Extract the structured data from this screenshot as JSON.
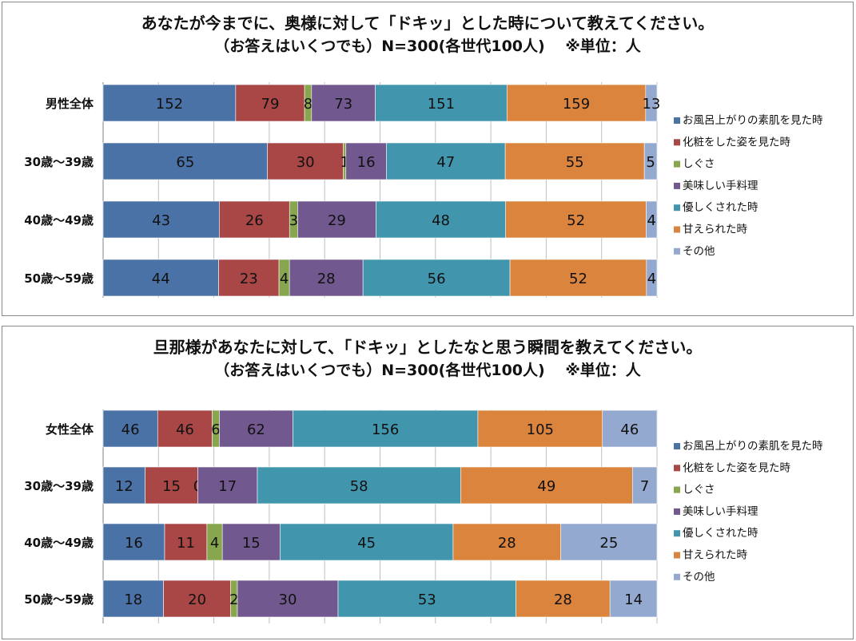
{
  "colors": [
    "#4a72a6",
    "#a84746",
    "#87a64e",
    "#71588f",
    "#4196ae",
    "#db843e",
    "#93a9cf"
  ],
  "legend": [
    "お風呂上がりの素肌を見た時",
    "化粧をした姿を見た時",
    "しぐさ",
    "美味しい手料理",
    "優しくされた時",
    "甘えられた時",
    "その他"
  ],
  "chart_data": [
    {
      "type": "bar",
      "orientation": "horizontal",
      "stacked": "percent",
      "title": "あなたが今までに、奥様に対して「ドキッ」とした時について教えてください。",
      "subtitle": "（お答えはいくつでも）N=300(各世代100人)　 ※単位：人",
      "categories": [
        "男性全体",
        "30歳～39歳",
        "40歳～49歳",
        "50歳～59歳"
      ],
      "series": [
        {
          "name": "お風呂上がりの素肌を見た時",
          "values": [
            152,
            65,
            43,
            44
          ]
        },
        {
          "name": "化粧をした姿を見た時",
          "values": [
            79,
            30,
            26,
            23
          ]
        },
        {
          "name": "しぐさ",
          "values": [
            8,
            1,
            3,
            4
          ]
        },
        {
          "name": "美味しい手料理",
          "values": [
            73,
            16,
            29,
            28
          ]
        },
        {
          "name": "優しくされた時",
          "values": [
            151,
            47,
            48,
            56
          ]
        },
        {
          "name": "甘えられた時",
          "values": [
            159,
            55,
            52,
            52
          ]
        },
        {
          "name": "その他",
          "values": [
            13,
            5,
            4,
            4
          ]
        }
      ],
      "legend_position": "right",
      "grid": true
    },
    {
      "type": "bar",
      "orientation": "horizontal",
      "stacked": "percent",
      "title": "旦那様があなたに対して、「ドキッ」としたなと思う瞬間を教えてください。",
      "subtitle": "（お答えはいくつでも）N=300(各世代100人)　 ※単位：人",
      "categories": [
        "女性全体",
        "30歳～39歳",
        "40歳～49歳",
        "50歳～59歳"
      ],
      "series": [
        {
          "name": "お風呂上がりの素肌を見た時",
          "values": [
            46,
            12,
            16,
            18
          ]
        },
        {
          "name": "化粧をした姿を見た時",
          "values": [
            46,
            15,
            11,
            20
          ]
        },
        {
          "name": "しぐさ",
          "values": [
            6,
            0,
            4,
            2
          ]
        },
        {
          "name": "美味しい手料理",
          "values": [
            62,
            17,
            15,
            30
          ]
        },
        {
          "name": "優しくされた時",
          "values": [
            156,
            58,
            45,
            53
          ]
        },
        {
          "name": "甘えられた時",
          "values": [
            105,
            49,
            28,
            28
          ]
        },
        {
          "name": "その他",
          "values": [
            46,
            7,
            25,
            14
          ]
        }
      ],
      "legend_position": "right",
      "grid": true
    }
  ]
}
